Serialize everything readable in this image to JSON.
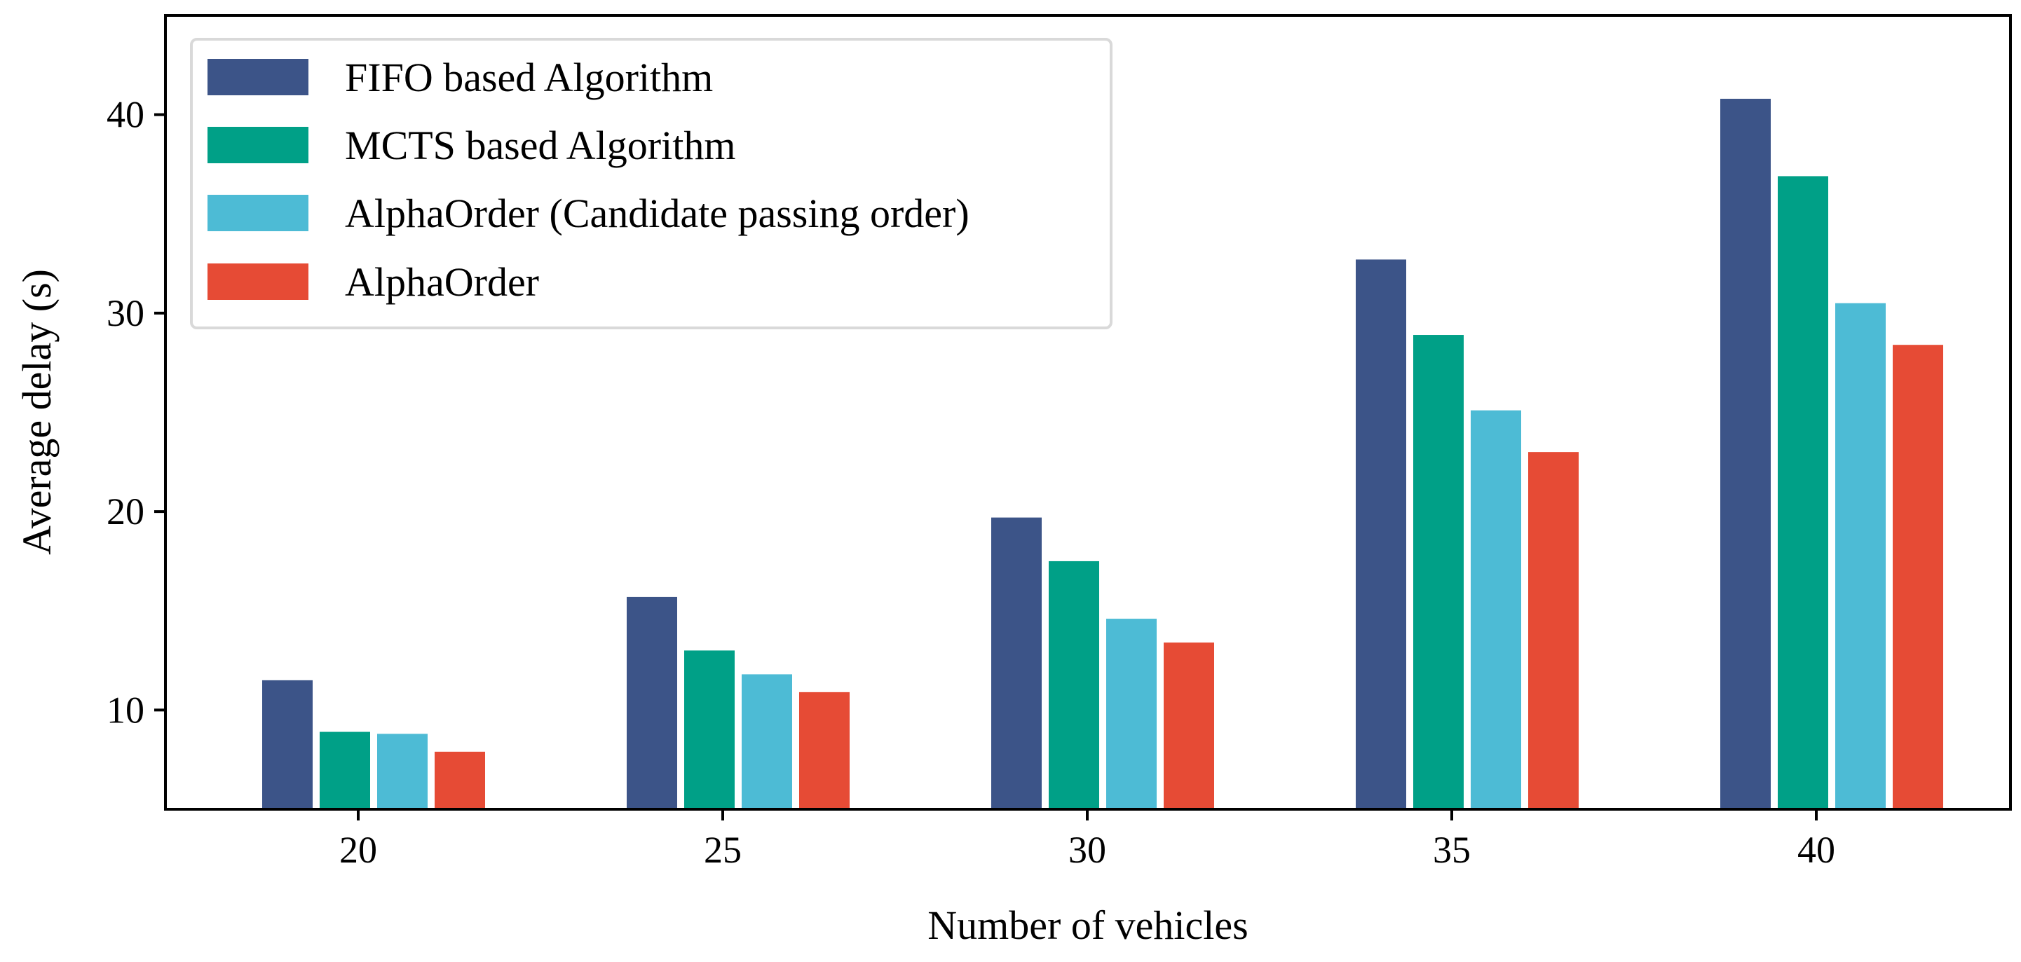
{
  "chart_data": {
    "type": "bar",
    "title": "",
    "xlabel": "Number of vehicles",
    "ylabel": "Average delay (s)",
    "categories": [
      "20",
      "25",
      "30",
      "35",
      "40"
    ],
    "ylim": [
      5,
      45
    ],
    "yticks": [
      10,
      20,
      30,
      40
    ],
    "grid": false,
    "legend_position": "top-left",
    "series": [
      {
        "name": "FIFO based Algorithm",
        "color": "#3c5488",
        "values": [
          11.5,
          15.7,
          19.7,
          32.7,
          40.8
        ]
      },
      {
        "name": "MCTS based Algorithm",
        "color": "#00a087",
        "values": [
          8.9,
          13.0,
          17.5,
          28.9,
          36.9
        ]
      },
      {
        "name": "AlphaOrder (Candidate passing order)",
        "color": "#4dbbd5",
        "values": [
          8.8,
          11.8,
          14.6,
          25.1,
          30.5
        ]
      },
      {
        "name": "AlphaOrder",
        "color": "#e64b35",
        "values": [
          7.9,
          10.9,
          13.4,
          23.0,
          28.4
        ]
      }
    ]
  }
}
